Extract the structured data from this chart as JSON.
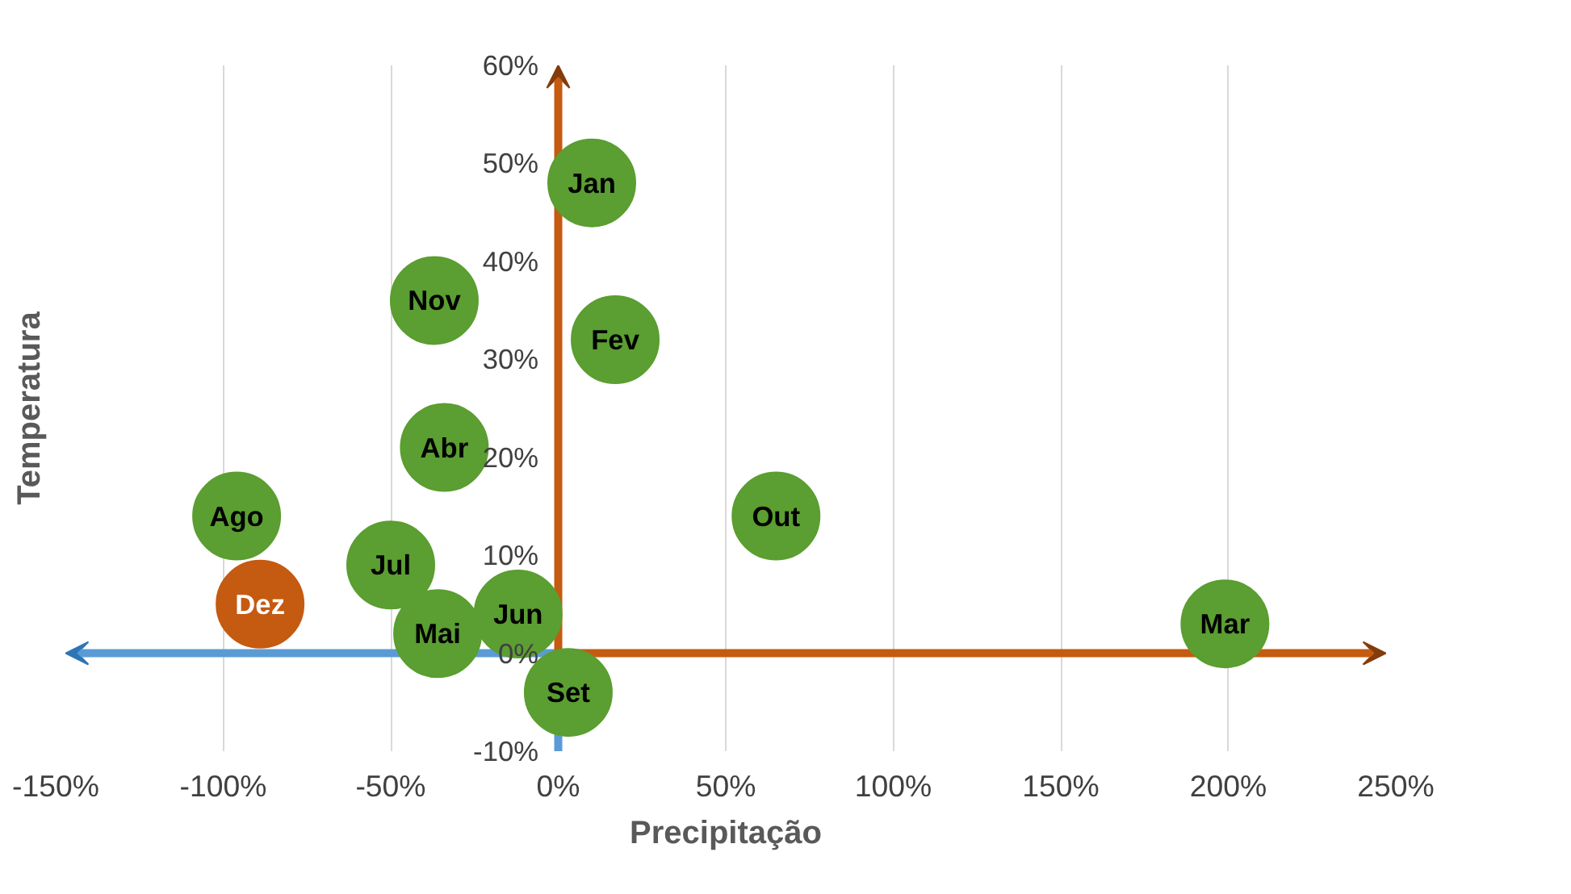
{
  "chart_data": {
    "type": "scatter",
    "xlabel": "Precipitação",
    "ylabel": "Temperatura",
    "xlim": [
      -150,
      250
    ],
    "ylim": [
      -10,
      60
    ],
    "xticks": [
      {
        "value": -150,
        "label": "-150%"
      },
      {
        "value": -100,
        "label": "-100%"
      },
      {
        "value": -50,
        "label": "-50%"
      },
      {
        "value": 0,
        "label": "0%"
      },
      {
        "value": 50,
        "label": "50%"
      },
      {
        "value": 100,
        "label": "100%"
      },
      {
        "value": 150,
        "label": "150%"
      },
      {
        "value": 200,
        "label": "200%"
      },
      {
        "value": 250,
        "label": "250%"
      }
    ],
    "yticks": [
      {
        "value": -10,
        "label": "-10%"
      },
      {
        "value": 0,
        "label": "0%"
      },
      {
        "value": 10,
        "label": "10%"
      },
      {
        "value": 20,
        "label": "20%"
      },
      {
        "value": 30,
        "label": "30%"
      },
      {
        "value": 40,
        "label": "40%"
      },
      {
        "value": 50,
        "label": "50%"
      },
      {
        "value": 60,
        "label": "60%"
      }
    ],
    "grid": "x",
    "series": [
      {
        "x": [
          10,
          17,
          199,
          -34,
          -36,
          -12,
          -50,
          -96,
          3,
          65,
          -37
        ],
        "values": [
          48,
          32,
          3,
          21,
          2,
          4,
          9,
          14,
          -4,
          14,
          36
        ],
        "color": "#5b9e31"
      },
      {
        "x": [
          -89
        ],
        "values": [
          5
        ],
        "color": "#c55a11"
      }
    ],
    "annotations": [
      {
        "text": "Jan",
        "x": 10,
        "y": 48
      },
      {
        "text": "Fev",
        "x": 17,
        "y": 32
      },
      {
        "text": "Mar",
        "x": 199,
        "y": 3
      },
      {
        "text": "Abr",
        "x": -34,
        "y": 21
      },
      {
        "text": "Mai",
        "x": -36,
        "y": 2
      },
      {
        "text": "Jun",
        "x": -12,
        "y": 4
      },
      {
        "text": "Jul",
        "x": -50,
        "y": 9
      },
      {
        "text": "Ago",
        "x": -96,
        "y": 14
      },
      {
        "text": "Set",
        "x": 3,
        "y": -4
      },
      {
        "text": "Out",
        "x": 65,
        "y": 14
      },
      {
        "text": "Nov",
        "x": -37,
        "y": 36
      },
      {
        "text": "Dez",
        "x": -89,
        "y": 5
      }
    ]
  }
}
